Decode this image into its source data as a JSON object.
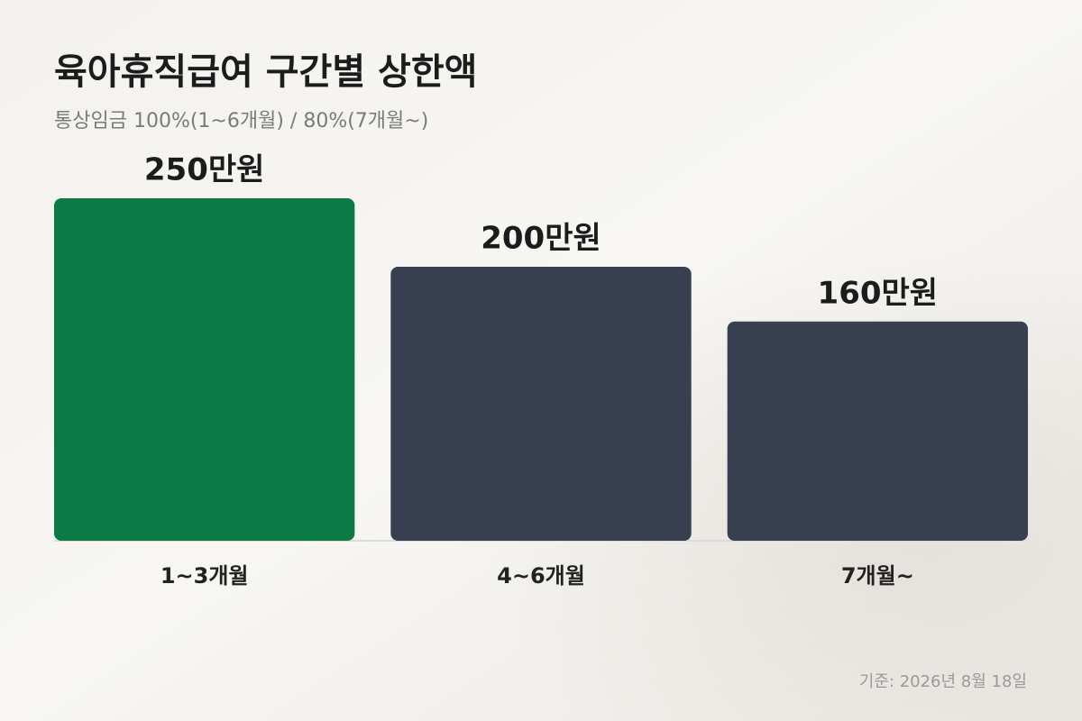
{
  "chart_data": {
    "type": "bar",
    "title": "육아휴직급여 구간별 상한액",
    "subtitle": "통상임금 100%(1~6개월) / 80%(7개월~)",
    "categories": [
      "1~3개월",
      "4~6개월",
      "7개월~"
    ],
    "values": [
      250,
      200,
      160
    ],
    "value_labels": [
      "250만원",
      "200만원",
      "160만원"
    ],
    "colors": [
      "#0b7a45",
      "#373f51",
      "#373f51"
    ],
    "note": "기준: 2026년 8월 18일"
  }
}
